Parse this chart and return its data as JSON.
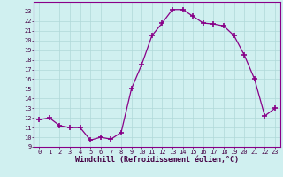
{
  "hours": [
    0,
    1,
    2,
    3,
    4,
    5,
    6,
    7,
    8,
    9,
    10,
    11,
    12,
    13,
    14,
    15,
    16,
    17,
    18,
    19,
    20,
    21,
    22,
    23
  ],
  "values": [
    11.8,
    12.0,
    11.2,
    11.0,
    11.0,
    9.7,
    10.0,
    9.8,
    10.5,
    15.0,
    17.5,
    20.5,
    21.8,
    23.2,
    23.2,
    22.5,
    21.8,
    21.7,
    21.5,
    20.5,
    18.5,
    16.0,
    12.2,
    13.0
  ],
  "line_color": "#880088",
  "marker": "+",
  "markersize": 4.0,
  "markeredgewidth": 1.2,
  "linewidth": 0.9,
  "bg_color": "#d0f0f0",
  "grid_color": "#b0d8d8",
  "xlabel": "Windchill (Refroidissement éolien,°C)",
  "xlabel_fontsize": 6.0,
  "xlim": [
    -0.5,
    23.5
  ],
  "ylim": [
    9,
    24
  ],
  "yticks": [
    9,
    10,
    11,
    12,
    13,
    14,
    15,
    16,
    17,
    18,
    19,
    20,
    21,
    22,
    23
  ],
  "xticks": [
    0,
    1,
    2,
    3,
    4,
    5,
    6,
    7,
    8,
    9,
    10,
    11,
    12,
    13,
    14,
    15,
    16,
    17,
    18,
    19,
    20,
    21,
    22,
    23
  ],
  "tick_fontsize": 5.0,
  "frame_color": "#880088"
}
